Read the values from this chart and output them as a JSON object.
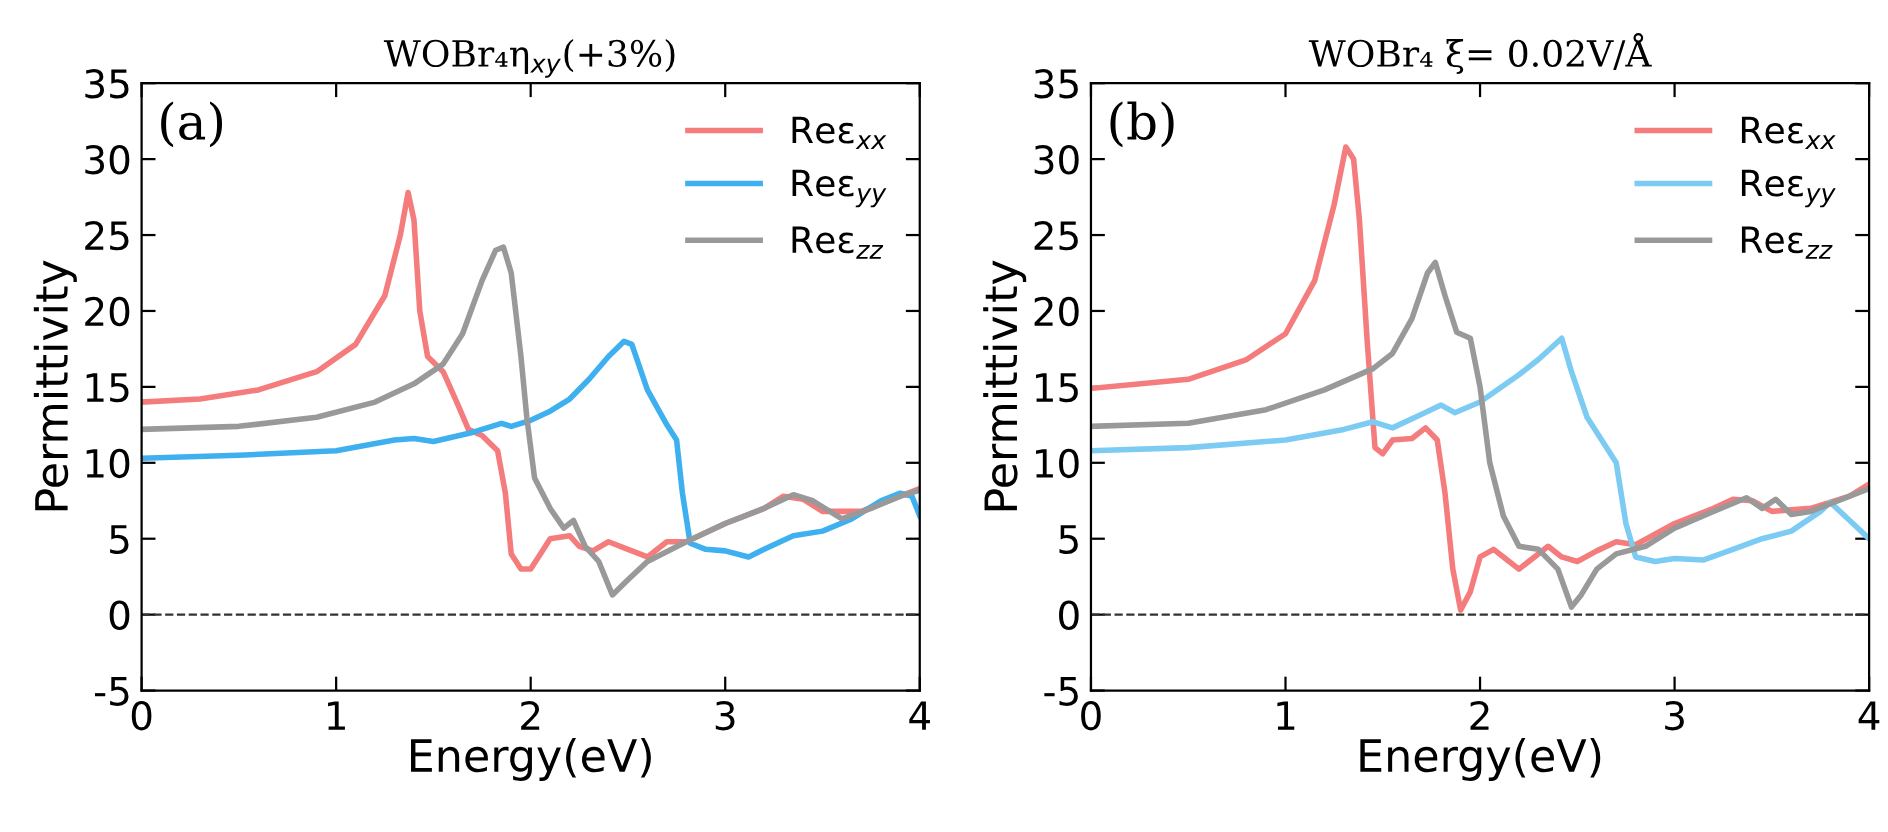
{
  "chart_data": [
    {
      "type": "line",
      "title": "WOBr₄η$_{xy}$(+3%)",
      "xlabel": "Energy(eV)",
      "ylabel": "Permittivity",
      "annotations": [
        "(a)"
      ],
      "xlim": [
        0,
        4
      ],
      "ylim": [
        -5,
        35
      ],
      "xticks": [
        0,
        1,
        2,
        3,
        4
      ],
      "yticks": [
        -5,
        0,
        5,
        10,
        15,
        20,
        25,
        30,
        35
      ],
      "grid": false,
      "legend": "top right",
      "line_style": "solid",
      "marker": "none",
      "ref_lines": [
        {
          "axis": "y",
          "value": 0,
          "color": "#333333",
          "line_style": "dashed"
        }
      ],
      "series": [
        {
          "name": "Reε$_{xx}$",
          "color": "#f47c7c",
          "x": [
            0,
            0.3,
            0.6,
            0.9,
            1.1,
            1.25,
            1.33,
            1.37,
            1.4,
            1.43,
            1.47,
            1.55,
            1.62,
            1.68,
            1.75,
            1.83,
            1.87,
            1.9,
            1.95,
            2.0,
            2.05,
            2.1,
            2.2,
            2.25,
            2.32,
            2.4,
            2.5,
            2.6,
            2.7,
            2.8,
            3.0,
            3.2,
            3.3,
            3.4,
            3.5,
            3.7,
            3.9,
            4.0
          ],
          "values": [
            14,
            14.2,
            14.8,
            16,
            17.8,
            21,
            25,
            27.8,
            26,
            20,
            17,
            16,
            14,
            12.2,
            11.8,
            10.8,
            8,
            4,
            3,
            3,
            4,
            5,
            5.2,
            4.5,
            4.2,
            4.8,
            4.3,
            3.8,
            4.8,
            4.8,
            6,
            7,
            7.8,
            7.6,
            6.8,
            6.8,
            7.8,
            8.3
          ]
        },
        {
          "name": "Reε$_{yy}$",
          "color": "#3fb0ef",
          "x": [
            0,
            0.5,
            1.0,
            1.3,
            1.4,
            1.5,
            1.7,
            1.85,
            1.9,
            2.0,
            2.1,
            2.2,
            2.3,
            2.4,
            2.48,
            2.52,
            2.6,
            2.7,
            2.75,
            2.78,
            2.82,
            2.9,
            3.0,
            3.12,
            3.2,
            3.35,
            3.5,
            3.65,
            3.8,
            3.9,
            3.96,
            4.0
          ],
          "values": [
            10.3,
            10.5,
            10.8,
            11.5,
            11.6,
            11.4,
            12,
            12.6,
            12.4,
            12.8,
            13.4,
            14.2,
            15.5,
            17,
            18,
            17.8,
            14.8,
            12.5,
            11.5,
            8,
            4.7,
            4.3,
            4.2,
            3.8,
            4.3,
            5.2,
            5.5,
            6.3,
            7.5,
            8,
            7.8,
            6.5
          ]
        },
        {
          "name": "Reε$_{zz}$",
          "color": "#999999",
          "x": [
            0,
            0.5,
            0.9,
            1.2,
            1.4,
            1.55,
            1.65,
            1.75,
            1.82,
            1.86,
            1.9,
            1.95,
            1.98,
            2.02,
            2.1,
            2.17,
            2.2,
            2.22,
            2.28,
            2.35,
            2.42,
            2.5,
            2.6,
            2.8,
            3.0,
            3.2,
            3.35,
            3.45,
            3.6,
            3.75,
            3.9,
            4.0
          ],
          "values": [
            12.2,
            12.4,
            13,
            14,
            15.2,
            16.5,
            18.5,
            22,
            24,
            24.2,
            22.5,
            17,
            13,
            9,
            7,
            5.7,
            6,
            6.2,
            4.5,
            3.5,
            1.3,
            2.3,
            3.5,
            4.8,
            6,
            7,
            7.9,
            7.5,
            6.3,
            7,
            7.8,
            8.2
          ]
        }
      ]
    },
    {
      "type": "line",
      "title": "WOBr₄ ξ= 0.02V/Å",
      "xlabel": "Energy(eV)",
      "ylabel": "Permittivity",
      "annotations": [
        "(b)"
      ],
      "xlim": [
        0,
        4
      ],
      "ylim": [
        -5,
        35
      ],
      "xticks": [
        0,
        1,
        2,
        3,
        4
      ],
      "yticks": [
        -5,
        0,
        5,
        10,
        15,
        20,
        25,
        30,
        35
      ],
      "grid": false,
      "legend": "top right",
      "line_style": "solid",
      "marker": "none",
      "ref_lines": [
        {
          "axis": "y",
          "value": 0,
          "color": "#333333",
          "line_style": "dashed"
        }
      ],
      "series": [
        {
          "name": "Reε$_{xx}$",
          "color": "#f47c7c",
          "x": [
            0,
            0.5,
            0.8,
            1.0,
            1.15,
            1.25,
            1.31,
            1.35,
            1.38,
            1.42,
            1.46,
            1.5,
            1.55,
            1.65,
            1.72,
            1.78,
            1.82,
            1.86,
            1.9,
            1.95,
            2.0,
            2.07,
            2.13,
            2.2,
            2.27,
            2.35,
            2.42,
            2.5,
            2.6,
            2.7,
            2.8,
            3.0,
            3.2,
            3.3,
            3.4,
            3.5,
            3.7,
            3.9,
            4.0
          ],
          "values": [
            14.9,
            15.5,
            16.8,
            18.5,
            22,
            27,
            30.8,
            30,
            26,
            18,
            11,
            10.6,
            11.5,
            11.6,
            12.3,
            11.5,
            8,
            3,
            0.3,
            1.5,
            3.8,
            4.3,
            3.7,
            3.0,
            3.7,
            4.5,
            3.8,
            3.5,
            4.2,
            4.8,
            4.6,
            6,
            7,
            7.6,
            7.5,
            6.8,
            7,
            7.8,
            8.6
          ]
        },
        {
          "name": "Reε$_{yy}$",
          "color": "#7ccbf2",
          "x": [
            0,
            0.5,
            1.0,
            1.3,
            1.45,
            1.55,
            1.7,
            1.8,
            1.87,
            2.0,
            2.2,
            2.3,
            2.42,
            2.47,
            2.55,
            2.65,
            2.7,
            2.75,
            2.8,
            2.9,
            3.0,
            3.15,
            3.3,
            3.45,
            3.6,
            3.75,
            3.8,
            3.9,
            4.0
          ],
          "values": [
            10.8,
            11,
            11.5,
            12.2,
            12.7,
            12.3,
            13.2,
            13.8,
            13.3,
            14,
            15.8,
            16.8,
            18.2,
            16,
            13,
            11,
            10,
            6,
            3.8,
            3.5,
            3.7,
            3.6,
            4.3,
            5,
            5.5,
            6.8,
            7.4,
            6.2,
            5
          ]
        },
        {
          "name": "Reε$_{zz}$",
          "color": "#999999",
          "x": [
            0,
            0.5,
            0.9,
            1.2,
            1.45,
            1.55,
            1.65,
            1.73,
            1.77,
            1.82,
            1.88,
            1.95,
            2.0,
            2.05,
            2.12,
            2.2,
            2.3,
            2.4,
            2.47,
            2.52,
            2.6,
            2.7,
            2.85,
            3.0,
            3.2,
            3.37,
            3.45,
            3.52,
            3.6,
            3.7,
            3.9,
            4.0
          ],
          "values": [
            12.4,
            12.6,
            13.5,
            14.8,
            16.2,
            17.2,
            19.5,
            22.5,
            23.2,
            21,
            18.6,
            18.2,
            15,
            10,
            6.5,
            4.5,
            4.3,
            3,
            0.5,
            1.3,
            3,
            4,
            4.5,
            5.7,
            6.8,
            7.7,
            7,
            7.6,
            6.6,
            6.8,
            7.8,
            8.3
          ]
        }
      ]
    }
  ]
}
